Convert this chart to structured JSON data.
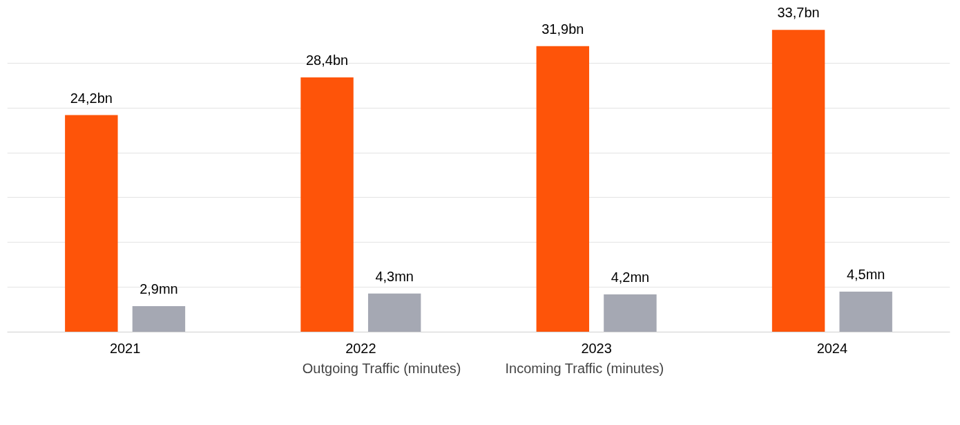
{
  "chart_data": {
    "type": "bar",
    "categories": [
      "2021",
      "2022",
      "2023",
      "2024"
    ],
    "series": [
      {
        "name": "Outgoing Traffic (minutes)",
        "color": "#fe5409",
        "values": [
          24.2,
          28.4,
          31.9,
          33.7
        ],
        "value_labels": [
          "24,2bn",
          "28,4bn",
          "31,9bn",
          "33,7bn"
        ]
      },
      {
        "name": "Incoming Traffic (minutes)",
        "color": "#a5a8b3",
        "values": [
          2.9,
          4.3,
          4.2,
          4.5
        ],
        "value_labels": [
          "2,9mn",
          "4,3mn",
          "4,2mn",
          "4,5mn"
        ]
      }
    ],
    "yticks": [
      {
        "value": 0,
        "label": null
      },
      {
        "value": 5,
        "label": null
      },
      {
        "value": 10,
        "label": null
      },
      {
        "value": 15,
        "label": null
      },
      {
        "value": 20,
        "label": null
      },
      {
        "value": 25,
        "label": null
      },
      {
        "value": 30,
        "label": null
      }
    ],
    "tick_labels": "x",
    "grid": "y",
    "legend": "bottom"
  }
}
